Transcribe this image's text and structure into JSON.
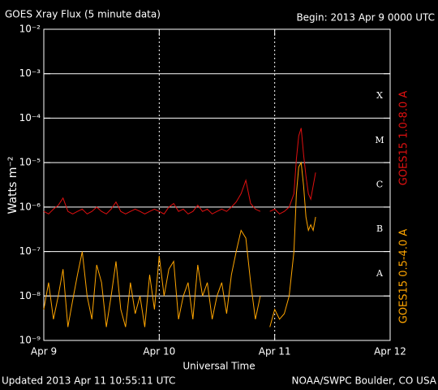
{
  "chart_data": {
    "type": "line",
    "title": "GOES Xray Flux (5 minute data)",
    "subtitle": "Begin:  2013 Apr 9 0000 UTC",
    "x_label": "Universal Time",
    "y_label": "Watts m⁻²",
    "footer_left": "Updated 2013 Apr 11 10:55:11 UTC",
    "footer_right": "NOAA/SWPC Boulder, CO USA",
    "class_labels": [
      "A",
      "B",
      "C",
      "M",
      "X"
    ],
    "log_y": true,
    "grid": true,
    "xlim": [
      0,
      72
    ],
    "xticks": [
      {
        "value": 0,
        "label": "Apr 9"
      },
      {
        "value": 24,
        "label": "Apr 10"
      },
      {
        "value": 48,
        "label": "Apr 11"
      },
      {
        "value": 72,
        "label": "Apr 12"
      }
    ],
    "ylim": [
      1e-09,
      0.01
    ],
    "yticks": [
      {
        "value": 1e-09,
        "label": "10⁻⁹"
      },
      {
        "value": 1e-08,
        "label": "10⁻⁸"
      },
      {
        "value": 1e-07,
        "label": "10⁻⁷"
      },
      {
        "value": 1e-06,
        "label": "10⁻⁶"
      },
      {
        "value": 1e-05,
        "label": "10⁻⁵"
      },
      {
        "value": 0.0001,
        "label": "10⁻⁴"
      },
      {
        "value": 0.001,
        "label": "10⁻³"
      },
      {
        "value": 0.01,
        "label": "10⁻²"
      }
    ],
    "x": [
      0,
      1,
      2,
      3,
      4,
      5,
      6,
      7,
      8,
      9,
      10,
      11,
      12,
      13,
      14,
      15,
      16,
      17,
      18,
      19,
      20,
      21,
      22,
      23,
      24,
      25,
      26,
      27,
      28,
      29,
      30,
      31,
      32,
      33,
      34,
      35,
      36,
      37,
      38,
      39,
      40,
      41,
      42,
      43,
      44,
      45,
      46,
      47,
      48,
      49,
      50,
      51,
      52,
      52.5,
      53,
      53.5,
      54,
      54.5,
      55,
      55.5,
      56,
      56.5
    ],
    "series": [
      {
        "name": "GOES15 1.0-8.0 A",
        "color": "#e01010",
        "values": [
          8e-07,
          7e-07,
          9e-07,
          1.1e-06,
          1.6e-06,
          8e-07,
          7e-07,
          8e-07,
          9e-07,
          7e-07,
          8e-07,
          1e-06,
          8e-07,
          7e-07,
          9e-07,
          1.3e-06,
          8e-07,
          7e-07,
          8e-07,
          9e-07,
          8e-07,
          7e-07,
          8e-07,
          9e-07,
          8e-07,
          7e-07,
          1e-06,
          1.2e-06,
          8e-07,
          9e-07,
          7e-07,
          8e-07,
          1.1e-06,
          8e-07,
          9e-07,
          7e-07,
          8e-07,
          9e-07,
          8e-07,
          1e-06,
          1.3e-06,
          2e-06,
          4e-06,
          1.2e-06,
          9e-07,
          8e-07,
          null,
          8e-07,
          9e-07,
          7e-07,
          8e-07,
          1e-06,
          2e-06,
          1.2e-05,
          4e-05,
          6e-05,
          1.5e-05,
          5e-06,
          2e-06,
          1.5e-06,
          3e-06,
          6e-06
        ]
      },
      {
        "name": "GOES15 0.5-4.0 A",
        "color": "#ffa500",
        "values": [
          5e-09,
          2e-08,
          3e-09,
          1e-08,
          4e-08,
          2e-09,
          8e-09,
          3e-08,
          1e-07,
          1e-08,
          3e-09,
          5e-08,
          2e-08,
          2e-09,
          1e-08,
          6e-08,
          5e-09,
          2e-09,
          2e-08,
          4e-09,
          1e-08,
          2e-09,
          3e-08,
          5e-09,
          8e-08,
          1e-08,
          4e-08,
          6e-08,
          3e-09,
          1e-08,
          2e-08,
          3e-09,
          5e-08,
          1e-08,
          2e-08,
          3e-09,
          1e-08,
          2e-08,
          4e-09,
          3e-08,
          1e-07,
          3e-07,
          2e-07,
          2e-08,
          3e-09,
          1e-08,
          null,
          2e-09,
          5e-09,
          3e-09,
          4e-09,
          1e-08,
          1e-07,
          2e-06,
          8e-06,
          1e-05,
          3e-06,
          6e-07,
          3e-07,
          4e-07,
          3e-07,
          6e-07
        ]
      }
    ]
  }
}
